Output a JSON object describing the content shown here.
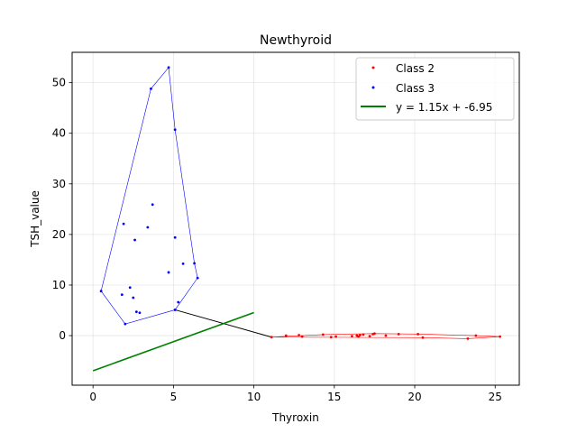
{
  "chart_data": {
    "type": "scatter",
    "title": "Newthyroid",
    "xlabel": "Thyroxin",
    "ylabel": "TSH_value",
    "xlim": [
      -1.3,
      26.5
    ],
    "ylim": [
      -9.8,
      56
    ],
    "xticks": [
      0,
      5,
      10,
      15,
      20,
      25
    ],
    "yticks": [
      0,
      10,
      20,
      30,
      40,
      50
    ],
    "grid": true,
    "legend_position": "top-right",
    "series": [
      {
        "name": "Class 2",
        "color": "#ff0000",
        "points": [
          [
            11.1,
            -0.3
          ],
          [
            12.0,
            0.0
          ],
          [
            12.8,
            0.1
          ],
          [
            13.0,
            -0.2
          ],
          [
            14.3,
            0.2
          ],
          [
            14.8,
            -0.3
          ],
          [
            15.1,
            -0.2
          ],
          [
            16.1,
            -0.1
          ],
          [
            16.4,
            0.0
          ],
          [
            16.5,
            -0.2
          ],
          [
            16.6,
            0.1
          ],
          [
            16.8,
            0.2
          ],
          [
            17.2,
            -0.1
          ],
          [
            17.4,
            0.3
          ],
          [
            17.5,
            0.4
          ],
          [
            18.2,
            0.0
          ],
          [
            19.0,
            0.3
          ],
          [
            20.2,
            0.3
          ],
          [
            20.5,
            -0.4
          ],
          [
            23.3,
            -0.6
          ],
          [
            23.8,
            0.0
          ],
          [
            25.3,
            -0.2
          ]
        ],
        "hull": [
          [
            11.1,
            -0.3
          ],
          [
            14.3,
            0.2
          ],
          [
            17.5,
            0.4
          ],
          [
            20.2,
            0.3
          ],
          [
            23.8,
            0.0
          ],
          [
            25.3,
            -0.2
          ],
          [
            23.3,
            -0.6
          ],
          [
            20.5,
            -0.4
          ],
          [
            11.1,
            -0.3
          ]
        ]
      },
      {
        "name": "Class 3",
        "color": "#0000ff",
        "points": [
          [
            0.5,
            8.8
          ],
          [
            1.8,
            8.1
          ],
          [
            1.9,
            22.1
          ],
          [
            2.0,
            2.3
          ],
          [
            2.3,
            9.5
          ],
          [
            2.5,
            7.5
          ],
          [
            2.6,
            18.9
          ],
          [
            2.7,
            4.7
          ],
          [
            2.9,
            4.5
          ],
          [
            3.4,
            21.4
          ],
          [
            3.6,
            48.8
          ],
          [
            3.7,
            25.9
          ],
          [
            4.7,
            12.5
          ],
          [
            4.7,
            53.0
          ],
          [
            5.1,
            40.7
          ],
          [
            5.1,
            19.4
          ],
          [
            5.1,
            5.1
          ],
          [
            5.3,
            6.6
          ],
          [
            5.6,
            14.2
          ],
          [
            6.3,
            14.3
          ],
          [
            6.5,
            11.4
          ]
        ],
        "hull": [
          [
            0.5,
            8.8
          ],
          [
            3.6,
            48.8
          ],
          [
            4.7,
            53.0
          ],
          [
            5.1,
            40.7
          ],
          [
            6.3,
            14.3
          ],
          [
            6.5,
            11.4
          ],
          [
            5.1,
            5.1
          ],
          [
            2.0,
            2.3
          ],
          [
            0.5,
            8.8
          ]
        ]
      }
    ],
    "connector": {
      "color": "#000000",
      "from": [
        5.1,
        5.1
      ],
      "to": [
        11.1,
        -0.3
      ]
    },
    "fit_line": {
      "name": "y = 1.15x + -6.95",
      "color": "#008000",
      "slope": 1.15,
      "intercept": -6.95,
      "x_range": [
        0,
        10
      ]
    }
  }
}
